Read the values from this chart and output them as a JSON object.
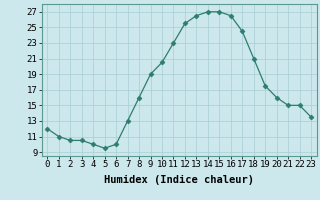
{
  "x": [
    0,
    1,
    2,
    3,
    4,
    5,
    6,
    7,
    8,
    9,
    10,
    11,
    12,
    13,
    14,
    15,
    16,
    17,
    18,
    19,
    20,
    21,
    22,
    23
  ],
  "y": [
    12,
    11,
    10.5,
    10.5,
    10,
    9.5,
    10,
    13,
    16,
    19,
    20.5,
    23,
    25.5,
    26.5,
    27,
    27,
    26.5,
    24.5,
    21,
    17.5,
    16,
    15,
    15,
    13.5
  ],
  "line_color": "#2e7d6e",
  "marker": "D",
  "marker_size": 2.5,
  "bg_color": "#cce8ec",
  "grid_color": "#a8cdd4",
  "xlabel": "Humidex (Indice chaleur)",
  "xlabel_fontsize": 7.5,
  "tick_fontsize": 6.5,
  "xlim": [
    -0.5,
    23.5
  ],
  "ylim": [
    8.5,
    28.0
  ],
  "yticks": [
    9,
    11,
    13,
    15,
    17,
    19,
    21,
    23,
    25,
    27
  ],
  "xticks": [
    0,
    1,
    2,
    3,
    4,
    5,
    6,
    7,
    8,
    9,
    10,
    11,
    12,
    13,
    14,
    15,
    16,
    17,
    18,
    19,
    20,
    21,
    22,
    23
  ]
}
